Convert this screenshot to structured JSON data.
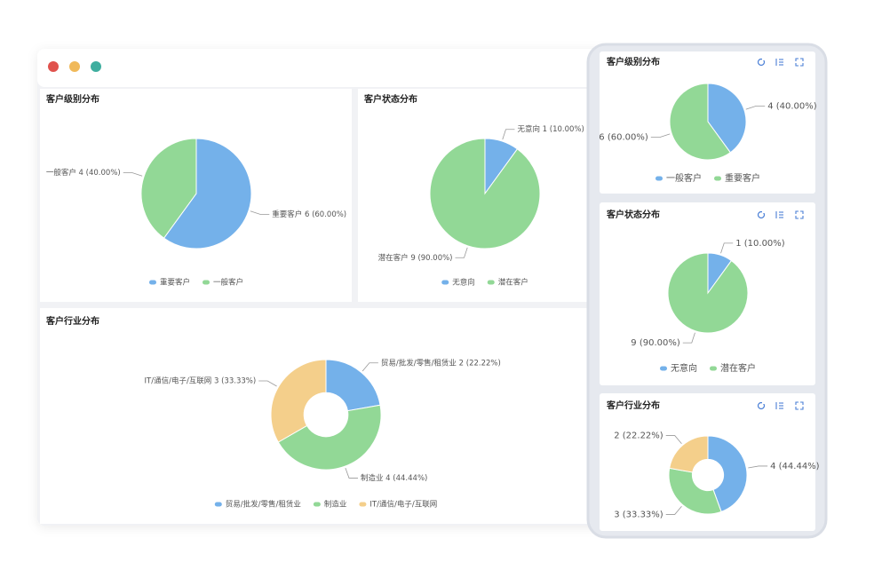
{
  "chart_data": [
    {
      "type": "pie",
      "title": "客户级别分布",
      "categories": [
        "重要客户",
        "一般客户"
      ],
      "values": [
        6,
        4
      ],
      "value_labels": [
        "重要客户 6 (60.00%)",
        "一般客户 4 (40.00%)"
      ],
      "colors": [
        "#74b1ea",
        "#92d896"
      ],
      "donut": false,
      "legend": "bottom"
    },
    {
      "type": "pie",
      "title": "客户状态分布",
      "categories": [
        "无意向",
        "潜在客户"
      ],
      "values": [
        1,
        9
      ],
      "value_labels": [
        "无意向 1 (10.00%)",
        "潜在客户 9 (90.00%)"
      ],
      "colors": [
        "#74b1ea",
        "#92d896"
      ],
      "donut": false,
      "legend": "bottom"
    },
    {
      "type": "pie",
      "title": "客户行业分布",
      "categories": [
        "贸易/批发/零售/租赁业",
        "制造业",
        "IT/通信/电子/互联网"
      ],
      "values": [
        2,
        4,
        3
      ],
      "value_labels": [
        "贸易/批发/零售/租赁业 2 (22.22%)",
        "制造业 4 (44.44%)",
        "IT/通信/电子/互联网 3 (33.33%)"
      ],
      "colors": [
        "#74b1ea",
        "#92d896",
        "#f4cf8b"
      ],
      "donut": true,
      "legend": "bottom"
    },
    {
      "type": "pie",
      "title": "客户级别分布",
      "categories": [
        "一般客户",
        "重要客户"
      ],
      "values": [
        4,
        6
      ],
      "value_labels": [
        "4 (40.00%)",
        "6 (60.00%)"
      ],
      "colors": [
        "#74b1ea",
        "#92d896"
      ],
      "donut": false,
      "legend": "bottom"
    },
    {
      "type": "pie",
      "title": "客户状态分布",
      "categories": [
        "无意向",
        "潜在客户"
      ],
      "values": [
        1,
        9
      ],
      "value_labels": [
        "1 (10.00%)",
        "9 (90.00%)"
      ],
      "colors": [
        "#74b1ea",
        "#92d896"
      ],
      "donut": false,
      "legend": "bottom"
    },
    {
      "type": "pie",
      "title": "客户行业分布",
      "values": [
        4,
        3,
        2
      ],
      "value_labels": [
        "4 (44.44%)",
        "3 (33.33%)",
        "2 (22.22%)"
      ],
      "colors": [
        "#74b1ea",
        "#92d896",
        "#f4cf8b"
      ],
      "donut": true
    }
  ]
}
